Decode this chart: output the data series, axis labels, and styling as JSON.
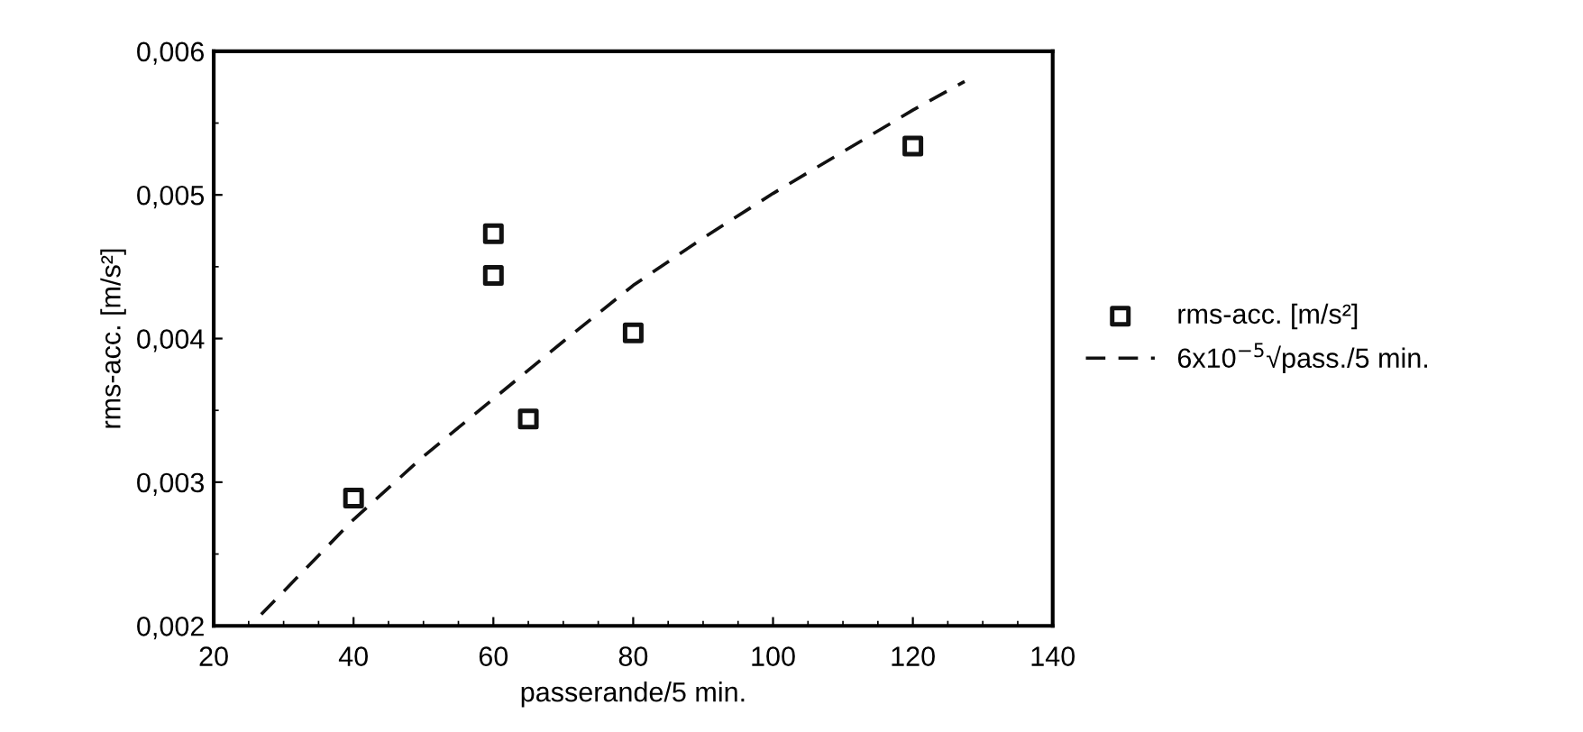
{
  "chart_data": {
    "type": "scatter",
    "xlabel": "passerande/5 min.",
    "ylabel": "rms-acc. [m/s²]",
    "xlim": [
      20,
      140
    ],
    "xticks": [
      20,
      40,
      60,
      80,
      100,
      120,
      140
    ],
    "ylim": [
      0.002,
      0.006
    ],
    "yticks": [
      {
        "value": 0.002,
        "label": "0,002"
      },
      {
        "value": 0.003,
        "label": "0,003"
      },
      {
        "value": 0.004,
        "label": "0,004"
      },
      {
        "value": 0.005,
        "label": "0,005"
      },
      {
        "value": 0.006,
        "label": "0,006"
      }
    ],
    "grid": false,
    "legend": "right",
    "series": [
      {
        "name": "rms-acc. [m/s²]",
        "marker": "square",
        "color": "#111111",
        "x": [
          40,
          60,
          60,
          65,
          80,
          120
        ],
        "values": [
          0.00289,
          0.00473,
          0.00444,
          0.00344,
          0.00404,
          0.00534
        ]
      },
      {
        "name": "6x10$^{−5}$√pass./5 min.",
        "type": "line",
        "line_style": "dashed",
        "marker": "none",
        "color": "#111111",
        "x": [
          26.8,
          30,
          40,
          50,
          60,
          70,
          80,
          90,
          100,
          110,
          120,
          127.4
        ],
        "values": [
          0.00208,
          0.00224,
          0.00274,
          0.00318,
          0.00358,
          0.00398,
          0.00437,
          0.0047,
          0.00501,
          0.0053,
          0.00559,
          0.00579
        ]
      }
    ]
  }
}
